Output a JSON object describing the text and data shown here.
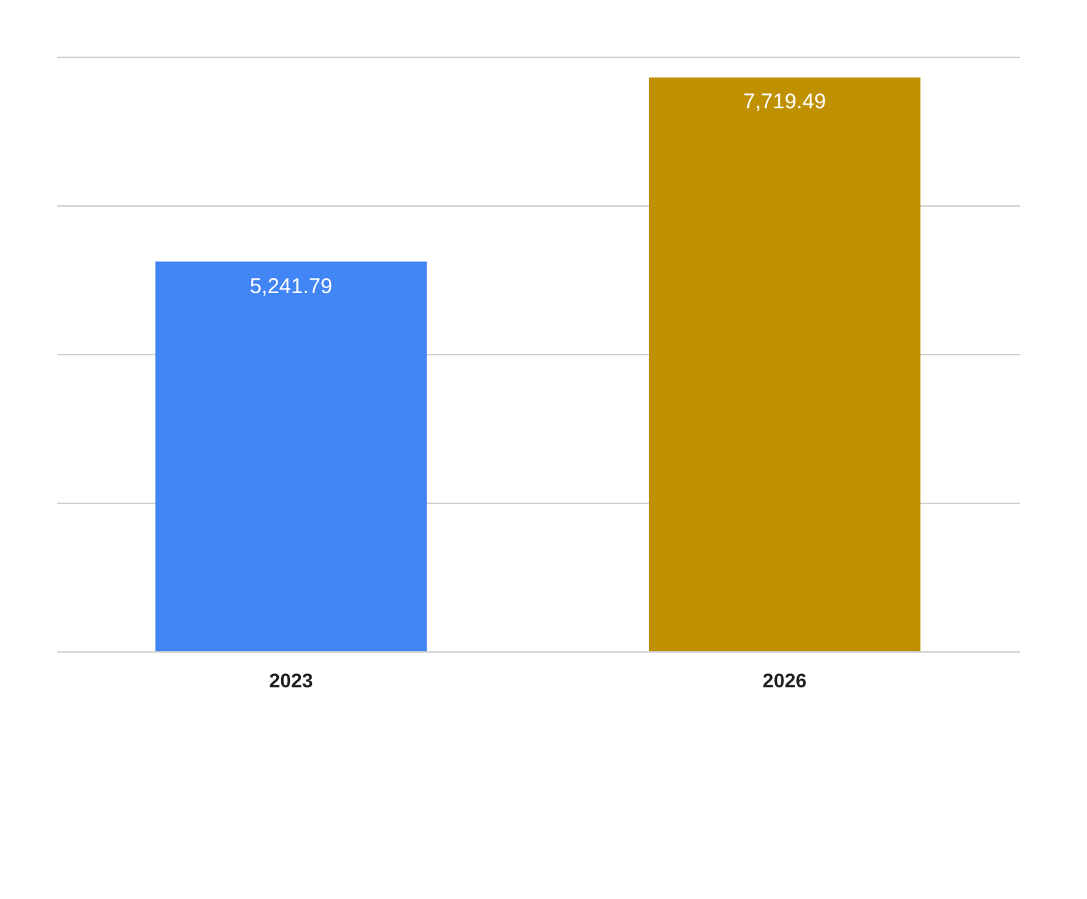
{
  "chart_data": {
    "type": "bar",
    "categories": [
      "2023",
      "2026"
    ],
    "values": [
      5241.79,
      7719.49
    ],
    "value_labels": [
      "5,241.79",
      "7,719.49"
    ],
    "colors": [
      "#4285f4",
      "#bf9000"
    ],
    "tick_labels": "x",
    "grid": "y"
  }
}
